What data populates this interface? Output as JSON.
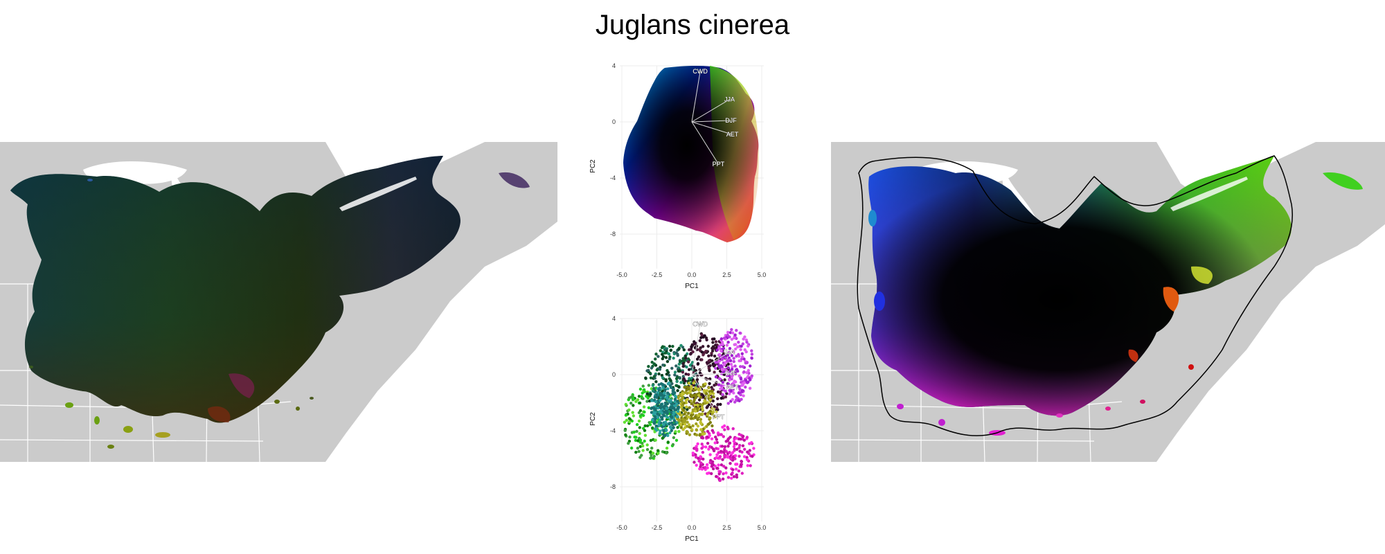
{
  "title": "Juglans cinerea",
  "colors": {
    "land": "#cbcbcb",
    "border": "#ffffff",
    "outline": "#000000"
  },
  "pca_axes": {
    "xlabel": "PC1",
    "ylabel": "PC2",
    "xticks": [
      "-5.0",
      "-2.5",
      "0.0",
      "2.5",
      "5.0"
    ],
    "yticks": [
      "4",
      "0",
      "-4",
      "-8"
    ]
  },
  "chart_data": [
    {
      "type": "scatter",
      "panel": "top",
      "xlabel": "PC1",
      "ylabel": "PC2",
      "xlim": [
        -5.0,
        5.0
      ],
      "ylim": [
        -8,
        4
      ],
      "loadings": [
        {
          "label": "CWD",
          "x": 0.6,
          "y": 3.6
        },
        {
          "label": "JJA",
          "x": 2.7,
          "y": 1.6
        },
        {
          "label": "DJF",
          "x": 2.8,
          "y": 0.1
        },
        {
          "label": "AET",
          "x": 2.9,
          "y": -0.9
        },
        {
          "label": "PPT",
          "x": 1.9,
          "y": -3.0
        }
      ]
    },
    {
      "type": "scatter",
      "panel": "bottom",
      "xlabel": "PC1",
      "ylabel": "PC2",
      "xlim": [
        -5.0,
        5.0
      ],
      "ylim": [
        -8,
        4
      ],
      "loadings": [
        {
          "label": "CWD",
          "x": 0.6,
          "y": 3.6
        },
        {
          "label": "JJA",
          "x": 2.7,
          "y": 1.6
        },
        {
          "label": "DJF",
          "x": 2.8,
          "y": 0.1
        },
        {
          "label": "AET",
          "x": 2.9,
          "y": -0.9
        },
        {
          "label": "PPT",
          "x": 1.9,
          "y": -3.0
        }
      ]
    }
  ]
}
